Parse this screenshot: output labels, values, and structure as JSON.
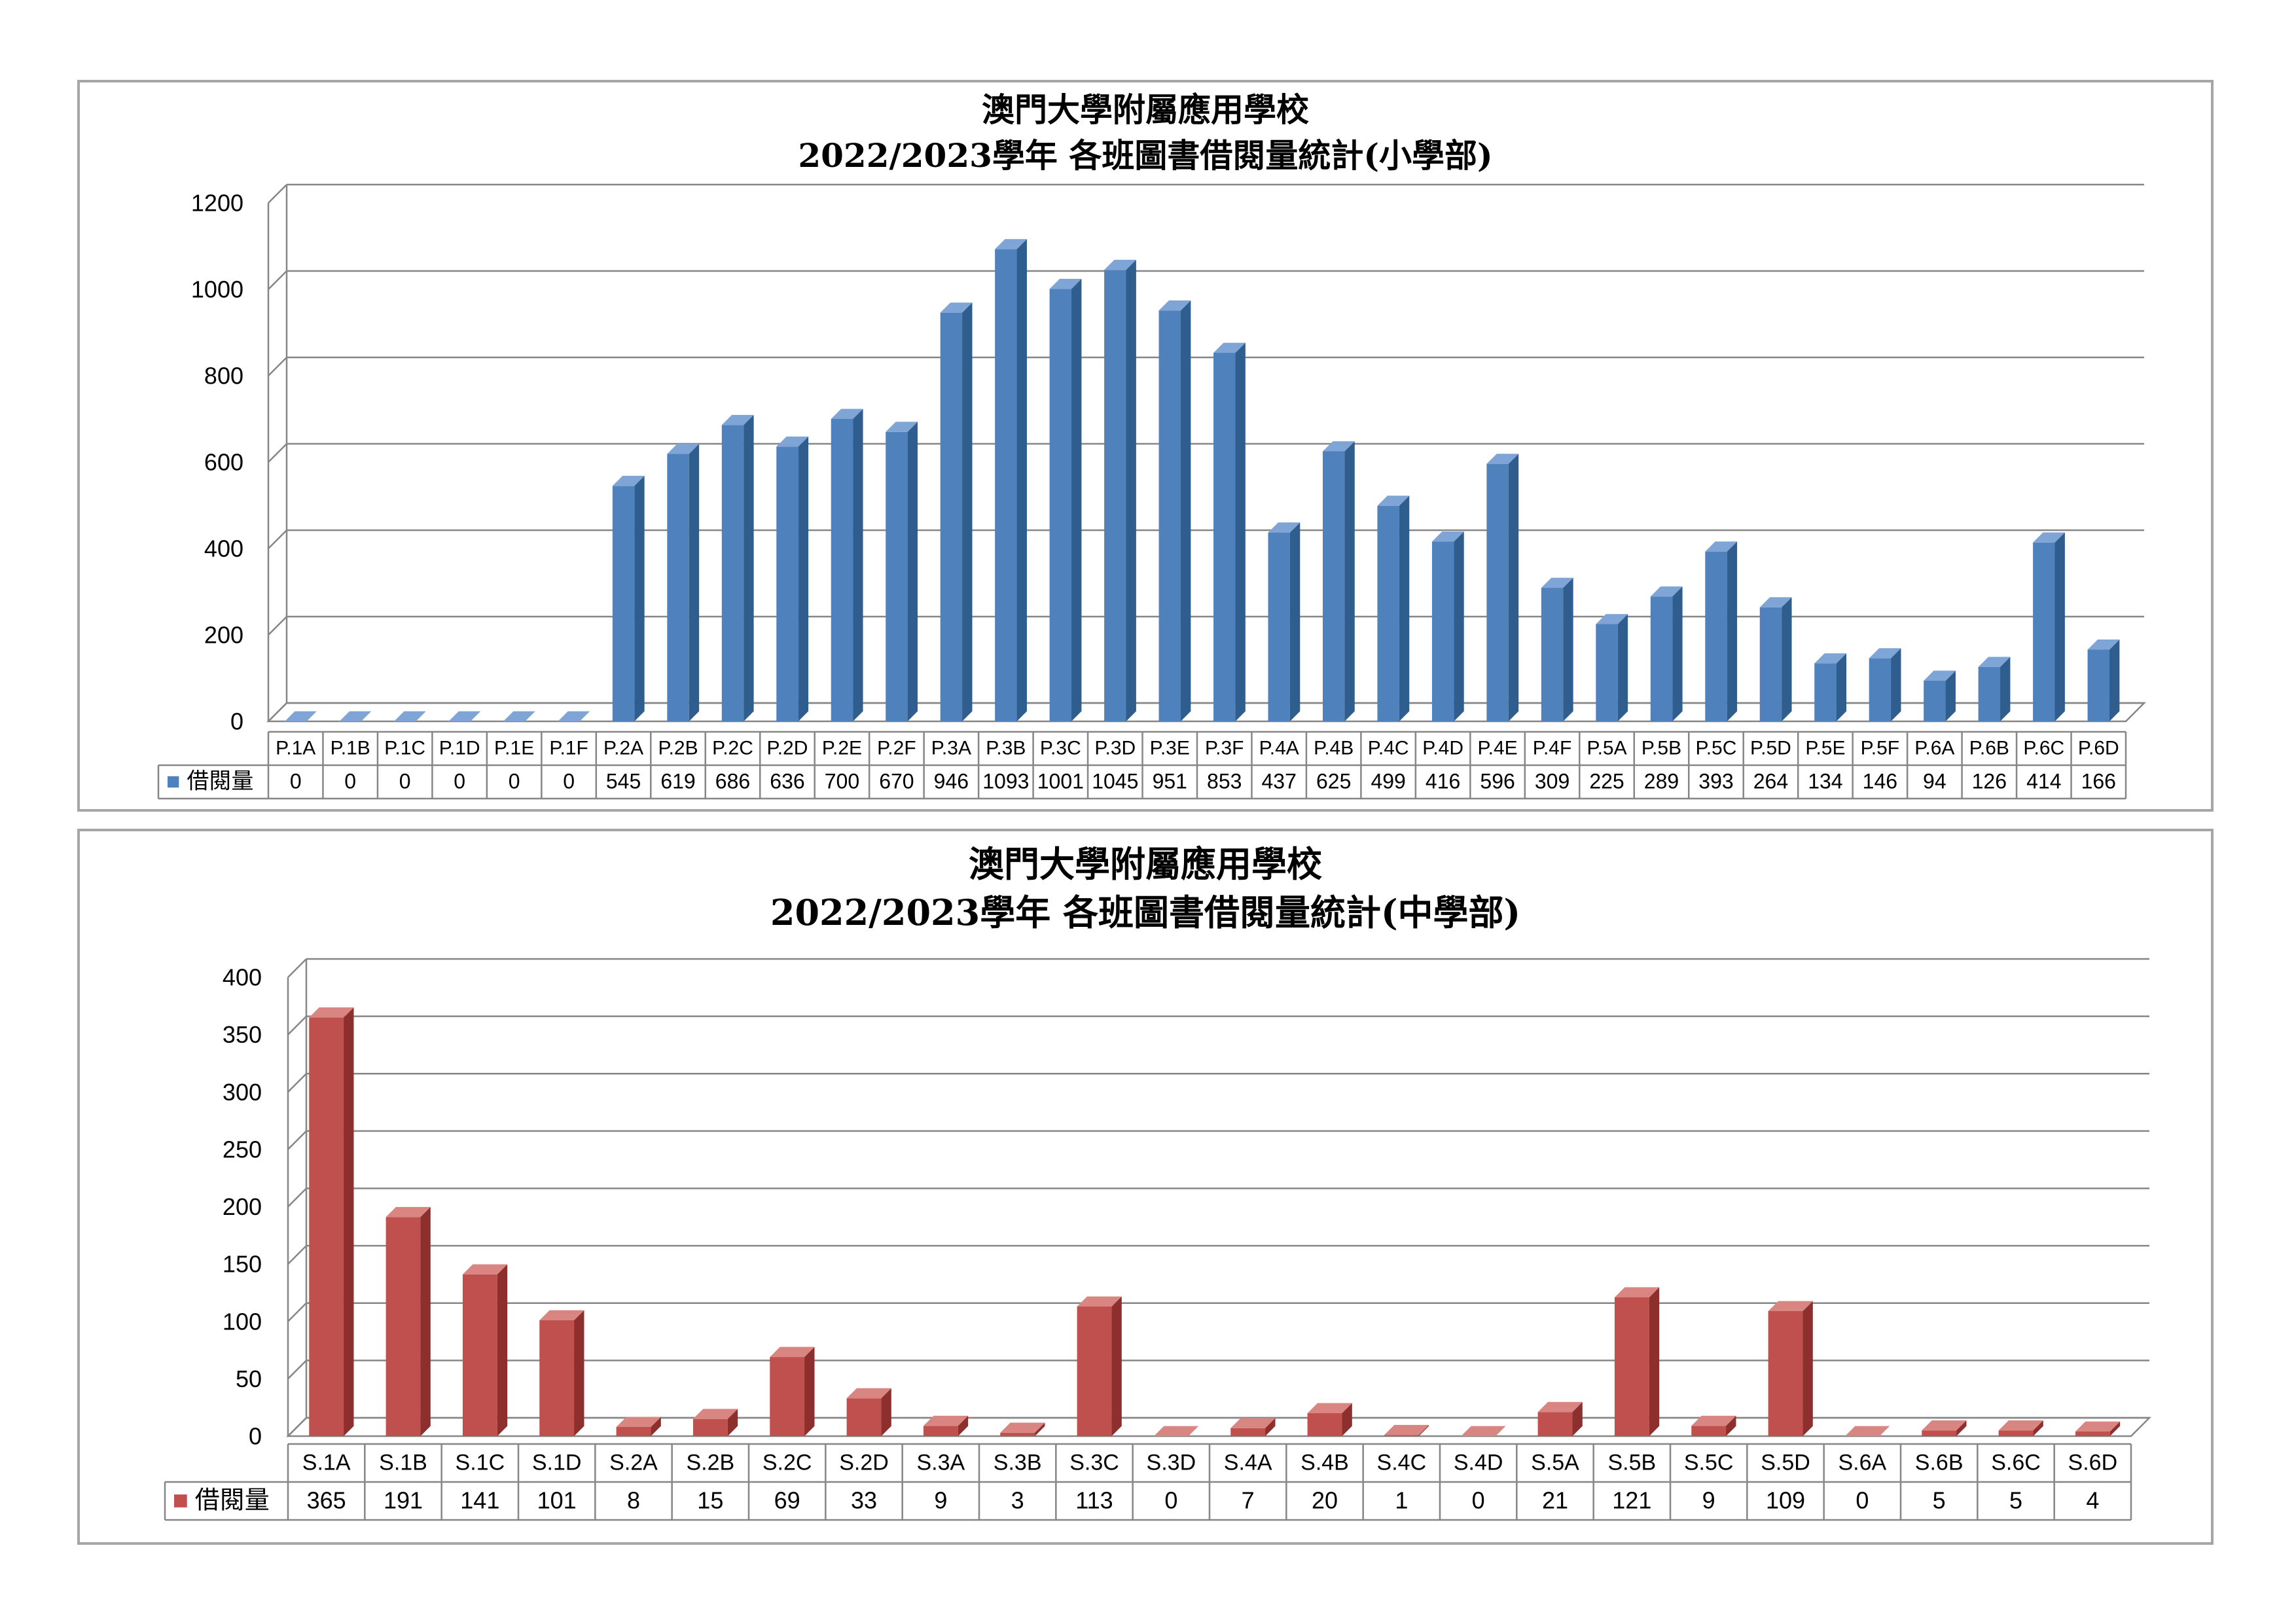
{
  "chart_data": [
    {
      "type": "bar",
      "title": "澳門大學附屬應用學校",
      "subtitle": "2022/2023學年  各班圖書借閱量統計(小學部)",
      "categories": [
        "P.1A",
        "P.1B",
        "P.1C",
        "P.1D",
        "P.1E",
        "P.1F",
        "P.2A",
        "P.2B",
        "P.2C",
        "P.2D",
        "P.2E",
        "P.2F",
        "P.3A",
        "P.3B",
        "P.3C",
        "P.3D",
        "P.3E",
        "P.3F",
        "P.4A",
        "P.4B",
        "P.4C",
        "P.4D",
        "P.4E",
        "P.4F",
        "P.5A",
        "P.5B",
        "P.5C",
        "P.5D",
        "P.5E",
        "P.5F",
        "P.6A",
        "P.6B",
        "P.6C",
        "P.6D"
      ],
      "series": [
        {
          "name": "借閱量",
          "values": [
            0,
            0,
            0,
            0,
            0,
            0,
            545,
            619,
            686,
            636,
            700,
            670,
            946,
            1093,
            1001,
            1045,
            951,
            853,
            437,
            625,
            499,
            416,
            596,
            309,
            225,
            289,
            393,
            264,
            134,
            146,
            94,
            126,
            414,
            166
          ]
        }
      ],
      "ylim": [
        0,
        1200
      ],
      "yticks": [
        0,
        200,
        400,
        600,
        800,
        1000,
        1200
      ],
      "grid": true,
      "legend": "data-table",
      "colors": {
        "front": "#4f81bd",
        "top": "#7ea5d6",
        "side": "#2f5e8e"
      }
    },
    {
      "type": "bar",
      "title": "澳門大學附屬應用學校",
      "subtitle": "2022/2023學年  各班圖書借閱量統計(中學部)",
      "categories": [
        "S.1A",
        "S.1B",
        "S.1C",
        "S.1D",
        "S.2A",
        "S.2B",
        "S.2C",
        "S.2D",
        "S.3A",
        "S.3B",
        "S.3C",
        "S.3D",
        "S.4A",
        "S.4B",
        "S.4C",
        "S.4D",
        "S.5A",
        "S.5B",
        "S.5C",
        "S.5D",
        "S.6A",
        "S.6B",
        "S.6C",
        "S.6D"
      ],
      "series": [
        {
          "name": "借閱量",
          "values": [
            365,
            191,
            141,
            101,
            8,
            15,
            69,
            33,
            9,
            3,
            113,
            0,
            7,
            20,
            1,
            0,
            21,
            121,
            9,
            109,
            0,
            5,
            5,
            4
          ]
        }
      ],
      "ylim": [
        0,
        400
      ],
      "yticks": [
        0,
        50,
        100,
        150,
        200,
        250,
        300,
        350,
        400
      ],
      "grid": true,
      "legend": "data-table",
      "colors": {
        "front": "#c0504d",
        "top": "#d98683",
        "side": "#8c2f2d"
      }
    }
  ]
}
